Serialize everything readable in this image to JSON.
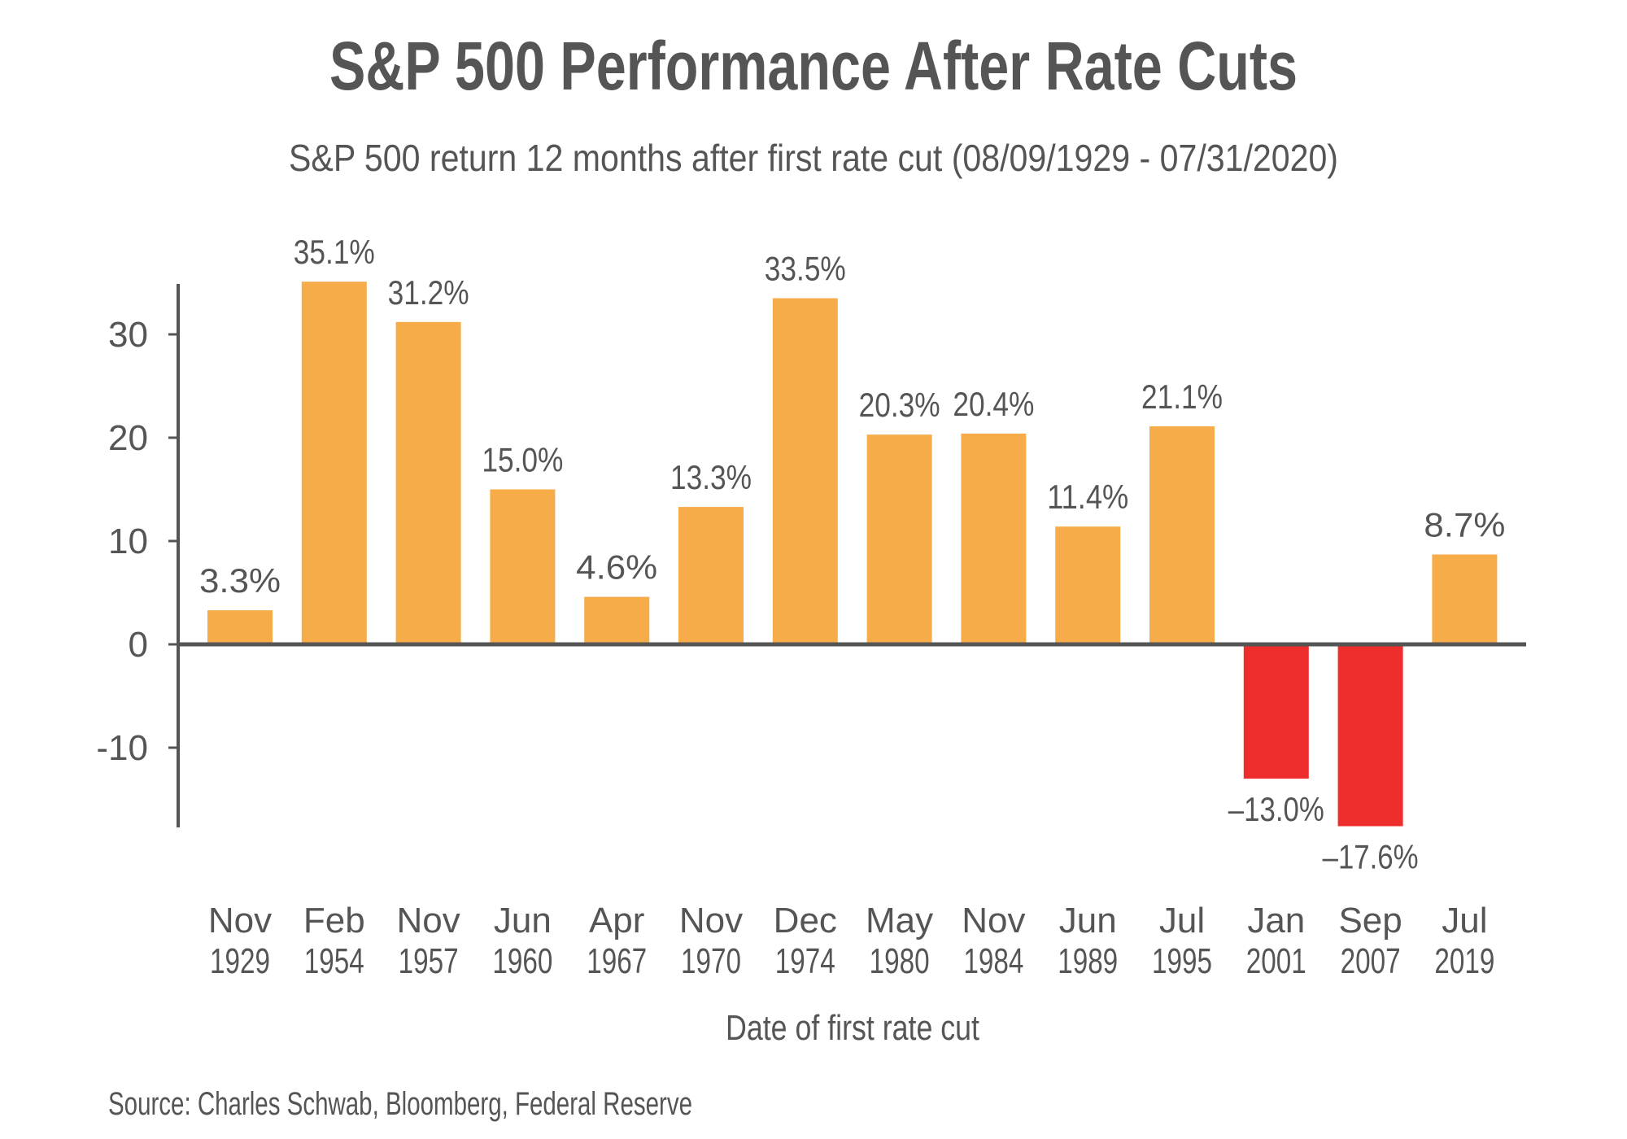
{
  "chart_data": {
    "type": "bar",
    "title": "S&P 500 Performance After Rate Cuts",
    "subtitle": "S&P 500 return 12 months after first rate cut (08/09/1929 - 07/31/2020)",
    "xlabel": "Date of first rate cut",
    "ylabel": "",
    "source": "Source: Charles Schwab, Bloomberg, Federal Reserve",
    "categories": [
      [
        "Nov",
        "1929"
      ],
      [
        "Feb",
        "1954"
      ],
      [
        "Nov",
        "1957"
      ],
      [
        "Jun",
        "1960"
      ],
      [
        "Apr",
        "1967"
      ],
      [
        "Nov",
        "1970"
      ],
      [
        "Dec",
        "1974"
      ],
      [
        "May",
        "1980"
      ],
      [
        "Nov",
        "1984"
      ],
      [
        "Jun",
        "1989"
      ],
      [
        "Jul",
        "1995"
      ],
      [
        "Jan",
        "2001"
      ],
      [
        "Sep",
        "2007"
      ],
      [
        "Jul",
        "2019"
      ]
    ],
    "values": [
      3.3,
      35.1,
      31.2,
      15.0,
      4.6,
      13.3,
      33.5,
      20.3,
      20.4,
      11.4,
      21.1,
      -13.0,
      -17.6,
      8.7
    ],
    "data_labels": [
      "3.3%",
      "35.1%",
      "31.2%",
      "15.0%",
      "4.6%",
      "13.3%",
      "33.5%",
      "20.3%",
      "20.4%",
      "11.4%",
      "21.1%",
      "–13.0%",
      "–17.6%",
      "8.7%"
    ],
    "yticks": [
      -10,
      0,
      10,
      20,
      30
    ],
    "ylim": [
      -17.6,
      35.1
    ],
    "grid": false,
    "colors": {
      "positive": "#F7AC4A",
      "negative": "#EE2E2C",
      "axis": "#555555",
      "text": "#555555"
    }
  }
}
